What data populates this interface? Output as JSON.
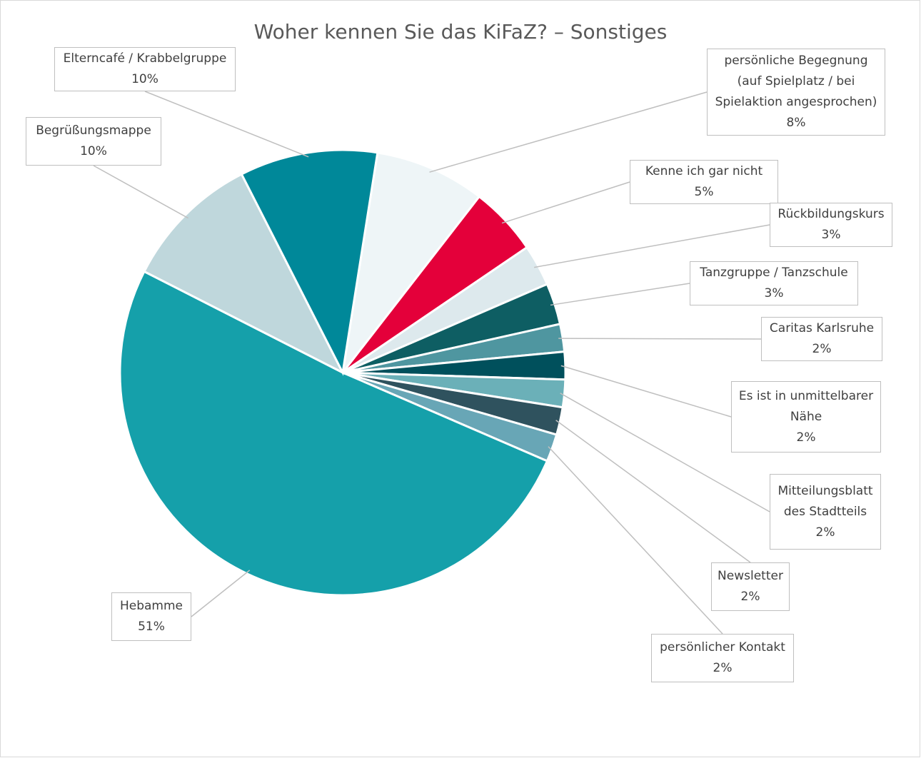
{
  "chart_data": {
    "type": "pie",
    "title": "Woher kennen Sie das KiFaZ? – Sonstiges",
    "start_angle": 9,
    "categories": [
      "persönliche Begegnung (auf Spielplatz / bei Spielaktion angesprochen)",
      "Kenne ich gar nicht",
      "Rückbildungskurs",
      "Tanzgruppe / Tanzschule",
      "Caritas Karlsruhe",
      "Es ist in unmittelbarer Nähe",
      "Mitteilungsblatt des Stadtteils",
      "Newsletter",
      "persönlicher Kontakt",
      "Hebamme",
      "Begrüßungsmappe",
      "Elterncafé / Krabbelgruppe"
    ],
    "values": [
      8,
      5,
      3,
      3,
      2,
      2,
      2,
      2,
      2,
      51,
      10,
      10
    ],
    "value_labels": [
      "8%",
      "5%",
      "3%",
      "3%",
      "2%",
      "2%",
      "2%",
      "2%",
      "2%",
      "51%",
      "10%",
      "10%"
    ],
    "colors": [
      "#eef5f7",
      "#e4003a",
      "#dde9ed",
      "#0e5e63",
      "#4f96a0",
      "#00505c",
      "#6bb0b8",
      "#2f525e",
      "#68a6b6",
      "#15a0aa",
      "#bfd7dc",
      "#008899"
    ]
  }
}
